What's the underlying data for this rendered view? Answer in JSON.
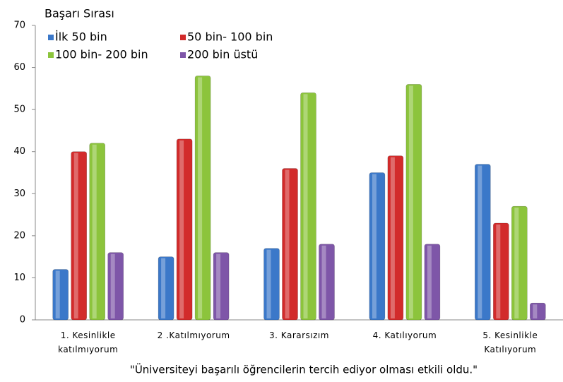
{
  "chart_data": {
    "type": "bar",
    "legend_title": "Başarı Sırası",
    "x_label": "\"Üniversiteyi başarılı öğrencilerin tercih ediyor olması etkili oldu.\"",
    "categories": [
      "1. Kesinlikle katılmıyorum",
      "2 .Katılmıyorum",
      "3. Kararsızım",
      "4. Katılıyorum",
      "5. Kesinlikle Katılıyorum"
    ],
    "series": [
      {
        "name": "İlk 50 bin",
        "color": "#3b78c9",
        "values": [
          12,
          15,
          17,
          35,
          37
        ]
      },
      {
        "name": "50 bin- 100 bin",
        "color": "#d22b2b",
        "values": [
          40,
          43,
          36,
          39,
          23
        ]
      },
      {
        "name": "100 bin- 200 bin",
        "color": "#8cc43c",
        "values": [
          42,
          58,
          54,
          56,
          27
        ]
      },
      {
        "name": "200 bin üstü",
        "color": "#7e56a8",
        "values": [
          16,
          16,
          18,
          18,
          4
        ]
      }
    ],
    "ylim": [
      0,
      70
    ],
    "yticks": [
      0,
      10,
      20,
      30,
      40,
      50,
      60,
      70
    ],
    "legend": "top-left"
  }
}
